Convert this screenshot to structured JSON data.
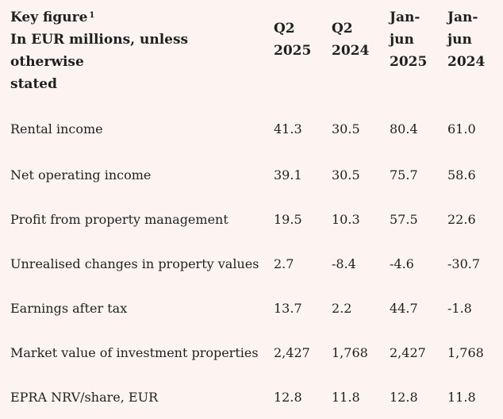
{
  "table": {
    "header": {
      "key_figure_label": "Key figure",
      "key_figure_superscript": "1",
      "units_line1": "In EUR millions, unless otherwise",
      "units_line2": "stated",
      "columns": [
        {
          "line1": "Q2",
          "line2": "2025"
        },
        {
          "line1": "Q2",
          "line2": "2024"
        },
        {
          "line1": "Jan-",
          "line2": "jun",
          "line3": "2025"
        },
        {
          "line1": "Jan-",
          "line2": "jun",
          "line3": "2024"
        }
      ]
    },
    "rows": [
      {
        "label": "Rental income",
        "values": [
          "41.3",
          "30.5",
          "80.4",
          "61.0"
        ]
      },
      {
        "label": "Net operating income",
        "values": [
          "39.1",
          "30.5",
          "75.7",
          "58.6"
        ]
      },
      {
        "label": "Profit from property management",
        "values": [
          "19.5",
          "10.3",
          "57.5",
          "22.6"
        ]
      },
      {
        "label": "Unrealised changes in property values",
        "values": [
          "2.7",
          "-8.4",
          "-4.6",
          "-30.7"
        ]
      },
      {
        "label": "Earnings after tax",
        "values": [
          "13.7",
          "2.2",
          "44.7",
          "-1.8"
        ]
      },
      {
        "label": "Market value of investment properties",
        "values": [
          "2,427",
          "1,768",
          "2,427",
          "1,768"
        ]
      },
      {
        "label": "EPRA NRV/share, EUR",
        "values": [
          "12.8",
          "11.8",
          "12.8",
          "11.8"
        ]
      }
    ]
  },
  "colors": {
    "background": "#FDF4F1",
    "text": "#1f1f1f"
  }
}
